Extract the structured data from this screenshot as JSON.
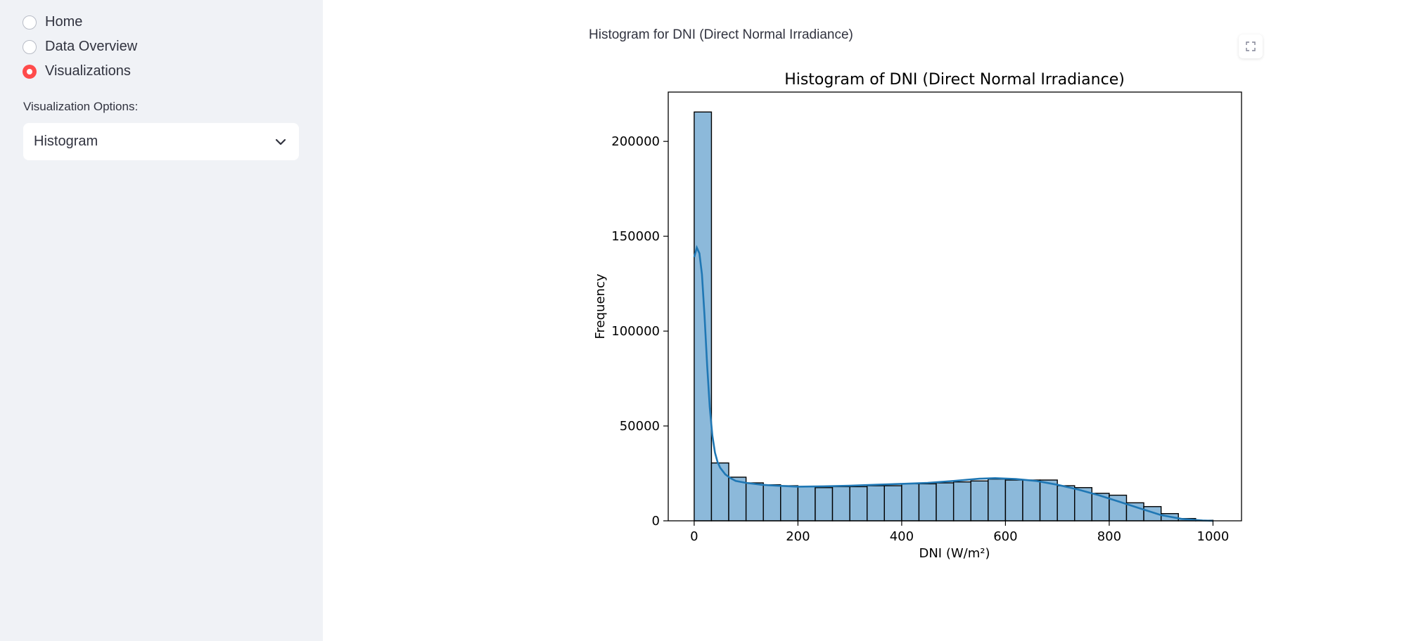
{
  "sidebar": {
    "radio_items": [
      {
        "label": "Home",
        "selected": false
      },
      {
        "label": "Data Overview",
        "selected": false
      },
      {
        "label": "Visualizations",
        "selected": true
      }
    ],
    "select_label": "Visualization Options:",
    "select_value": "Histogram",
    "accent_color": "#ff4b4b"
  },
  "main": {
    "figure_caption": "Histogram for DNI (Direct Normal Irradiance)",
    "expand_icon": "fullscreen-icon"
  },
  "chart_data": {
    "type": "bar",
    "title": "Histogram of DNI (Direct Normal Irradiance)",
    "xlabel": "DNI (W/m²)",
    "ylabel": "Frequency",
    "xlim": [
      -50,
      1055
    ],
    "ylim": [
      0,
      226000
    ],
    "xticks": [
      0,
      200,
      400,
      600,
      800,
      1000
    ],
    "yticks": [
      0,
      50000,
      100000,
      150000,
      200000
    ],
    "bin_edges": [
      0,
      33.3,
      66.6,
      100,
      133.3,
      166.6,
      200,
      233.3,
      266.6,
      300,
      333.3,
      366.6,
      400,
      433.3,
      466.6,
      500,
      533.3,
      566.6,
      600,
      633.3,
      666.6,
      700,
      733.3,
      766.6,
      800,
      833.3,
      866.6,
      900,
      933.3,
      966.6,
      1000
    ],
    "values": [
      215500,
      30500,
      23000,
      20000,
      19000,
      18500,
      18000,
      17500,
      18000,
      18000,
      18500,
      18500,
      19500,
      19500,
      20000,
      20500,
      21000,
      22000,
      21500,
      21500,
      21500,
      18500,
      17500,
      14500,
      13500,
      9500,
      7500,
      3800,
      1200,
      300
    ],
    "bar_color": "#8cb9da",
    "kde": {
      "x": [
        0,
        5,
        10,
        15,
        20,
        25,
        30,
        35,
        40,
        45,
        50,
        60,
        70,
        80,
        100,
        130,
        160,
        200,
        250,
        300,
        350,
        400,
        450,
        500,
        550,
        580,
        620,
        660,
        700,
        740,
        780,
        820,
        860,
        900,
        940,
        980,
        1000
      ],
      "y": [
        139000,
        144000,
        141000,
        130000,
        108000,
        82000,
        60000,
        45000,
        36000,
        31000,
        28000,
        24500,
        22500,
        21000,
        20000,
        19000,
        18500,
        18000,
        18200,
        18500,
        19000,
        19500,
        20000,
        21000,
        22200,
        22500,
        22000,
        21000,
        19000,
        16500,
        13500,
        10000,
        6500,
        3000,
        1000,
        200,
        0
      ],
      "color": "#1f77b4"
    },
    "grid": false
  }
}
